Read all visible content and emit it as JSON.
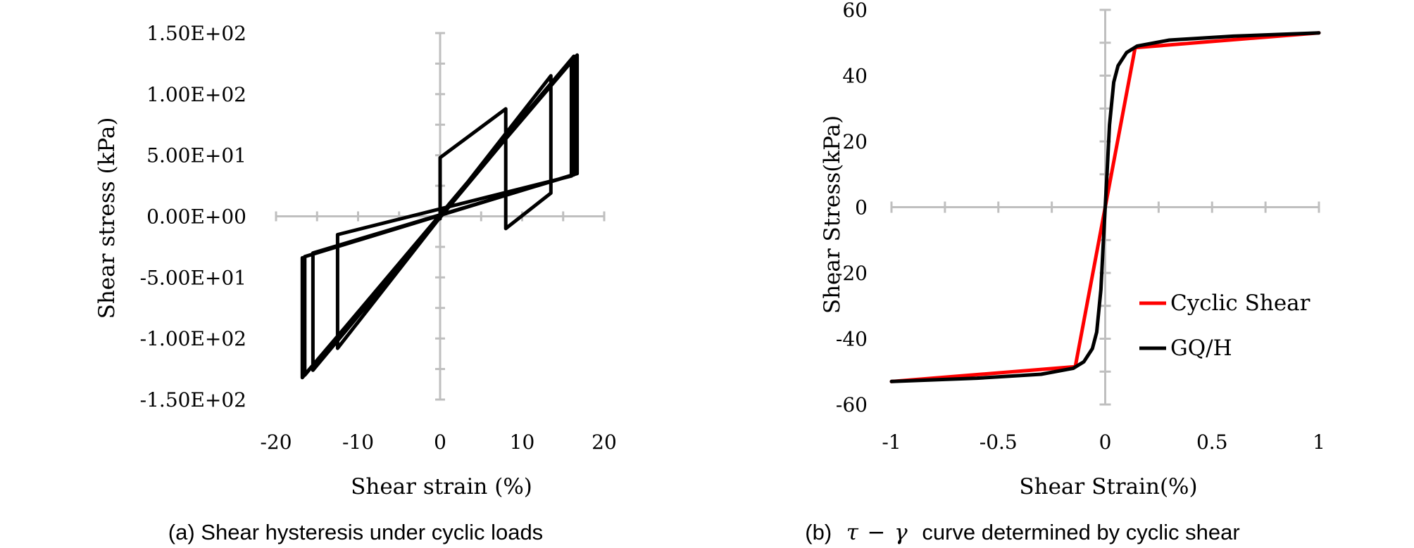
{
  "chart_data": [
    {
      "type": "line",
      "panel": "a",
      "caption": "(a) Shear hysteresis under cyclic loads",
      "xlabel": "Shear strain (%)",
      "ylabel": "Shear stress (kPa)",
      "xlim": [
        -20,
        20
      ],
      "ylim": [
        -150,
        150
      ],
      "xticks": [
        -20,
        -10,
        0,
        10,
        20
      ],
      "xtick_labels": [
        "-20",
        "-10",
        "0",
        "10",
        "20"
      ],
      "yticks": [
        150,
        100,
        50,
        0,
        -50,
        -100,
        -150
      ],
      "ytick_labels": [
        "1.50E+02",
        "1.00E+02",
        "5.00E+01",
        "0.00E+00",
        "-5.00E+01",
        "-1.00E+02",
        "-1.50E+02"
      ],
      "grid": false,
      "legend": null,
      "series": [
        {
          "color": "#000000",
          "x": [
            0,
            0,
            8,
            8,
            13.5,
            13.5,
            -12.5,
            -12.5,
            16.0,
            16.0,
            -15.5,
            -15.5,
            16.3,
            16.3,
            -16.5,
            -16.5,
            16.7,
            16.7,
            -16.8,
            -16.8
          ],
          "y": [
            -2,
            48,
            88,
            -10,
            19,
            115,
            -108,
            -15,
            33,
            128,
            -126,
            -30,
            34,
            131,
            -130,
            -33,
            35,
            132,
            -132,
            -34
          ]
        }
      ]
    },
    {
      "type": "line",
      "panel": "b",
      "caption_prefix": "(b)",
      "caption_tau": "τ",
      "caption_dash": "−",
      "caption_gamma": "γ",
      "caption_suffix": "curve determined by cyclic shear",
      "xlabel": "Shear Strain(%)",
      "ylabel": "Shear Stress(kPa)",
      "xlim": [
        -1,
        1
      ],
      "ylim": [
        -60,
        60
      ],
      "xticks": [
        -1,
        -0.5,
        0,
        0.5,
        1
      ],
      "xtick_labels": [
        "-1",
        "-0.5",
        "0",
        "0.5",
        "1"
      ],
      "yticks": [
        60,
        40,
        20,
        0,
        -20,
        -40,
        -60
      ],
      "ytick_labels": [
        "60",
        "40",
        "20",
        "0",
        "-20",
        "-40",
        "-60"
      ],
      "grid": false,
      "legend": "right",
      "series": [
        {
          "name": "Cyclic Shear",
          "color": "#ff0000",
          "x": [
            -1,
            -0.14,
            0.14,
            1
          ],
          "y": [
            -53,
            -48.5,
            48.5,
            53
          ]
        },
        {
          "name": "GQ/H",
          "color": "#000000",
          "x": [
            -1,
            -0.6,
            -0.3,
            -0.15,
            -0.1,
            -0.06,
            -0.04,
            -0.02,
            -0.01,
            0,
            0.01,
            0.02,
            0.04,
            0.06,
            0.1,
            0.15,
            0.3,
            0.6,
            1
          ],
          "y": [
            -53,
            -52,
            -50.8,
            -49,
            -47,
            -43,
            -38,
            -25,
            -12,
            0,
            12,
            25,
            38,
            43,
            47,
            49,
            50.8,
            52,
            53
          ]
        }
      ]
    }
  ]
}
